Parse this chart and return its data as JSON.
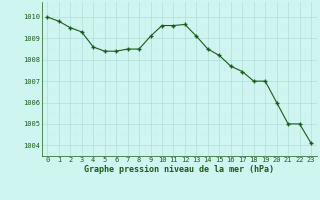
{
  "x": [
    0,
    1,
    2,
    3,
    4,
    5,
    6,
    7,
    8,
    9,
    10,
    11,
    12,
    13,
    14,
    15,
    16,
    17,
    18,
    19,
    20,
    21,
    22,
    23
  ],
  "y": [
    1010.0,
    1009.8,
    1009.5,
    1009.3,
    1008.6,
    1008.4,
    1008.4,
    1008.5,
    1008.5,
    1009.1,
    1009.6,
    1009.6,
    1009.65,
    1009.1,
    1008.5,
    1008.2,
    1007.7,
    1007.45,
    1007.0,
    1007.0,
    1006.0,
    1005.0,
    1005.0,
    1004.1
  ],
  "line_color": "#1a5c1a",
  "marker_color": "#1a5c1a",
  "bg_color": "#cff5f0",
  "grid_major_color": "#b0ddd8",
  "grid_minor_color": "#d0eeeb",
  "xlabel": "Graphe pression niveau de la mer (hPa)",
  "xlabel_color": "#1a5c1a",
  "tick_color": "#1a5c1a",
  "ylim": [
    1003.5,
    1010.7
  ],
  "yticks": [
    1004,
    1005,
    1006,
    1007,
    1008,
    1009,
    1010
  ],
  "xticks": [
    0,
    1,
    2,
    3,
    4,
    5,
    6,
    7,
    8,
    9,
    10,
    11,
    12,
    13,
    14,
    15,
    16,
    17,
    18,
    19,
    20,
    21,
    22,
    23
  ],
  "tick_fontsize": 5.0,
  "xlabel_fontsize": 6.0
}
